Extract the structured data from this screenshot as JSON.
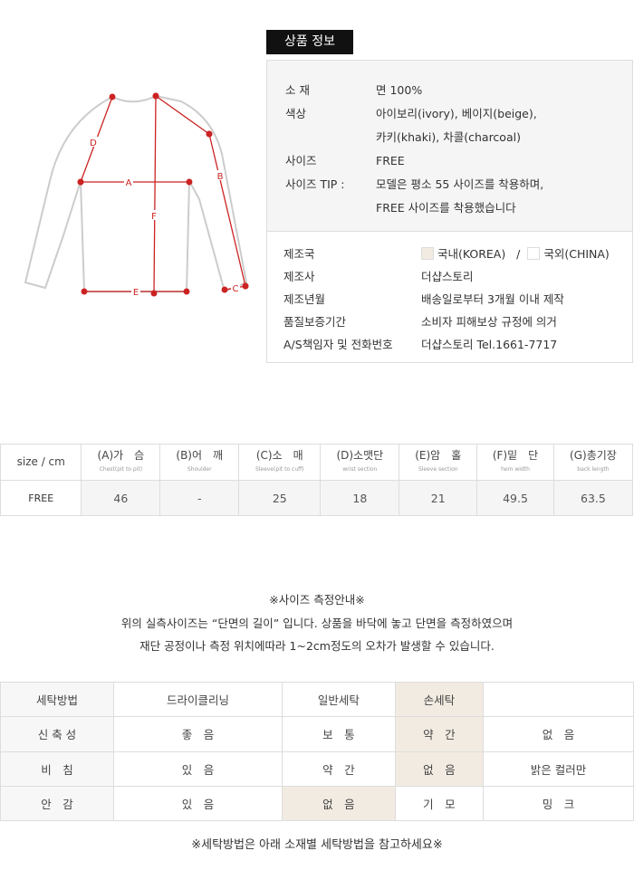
{
  "header": {
    "title": "상품 정보"
  },
  "diagram": {
    "labels": [
      "A",
      "B",
      "C",
      "D",
      "E",
      "F"
    ],
    "accent": "#cc2222"
  },
  "info_top": [
    {
      "k": "소 재",
      "v": [
        "면 100%"
      ]
    },
    {
      "k": "색상",
      "v": [
        "아이보리(ivory), 베이지(beige),",
        "카키(khaki), 차콜(charcoal)"
      ]
    },
    {
      "k": "사이즈",
      "v": [
        "FREE"
      ]
    },
    {
      "k": "사이즈 TIP :",
      "v": [
        "모델은 평소 55 사이즈를 착용하며,",
        "FREE 사이즈를 착용했습니다"
      ]
    }
  ],
  "origin": {
    "label": "제조국",
    "korea": "국내(KOREA)",
    "sep": "/",
    "china": "국외(CHINA)",
    "selected_color": "#f2ebe2"
  },
  "info_bot": [
    {
      "k": "제조사",
      "v": "더샵스토리"
    },
    {
      "k": "제조년월",
      "v": "배송일로부터 3개월 이내 제작"
    },
    {
      "k": "품질보증기간",
      "v": "소비자 피해보상 규정에 의거"
    },
    {
      "k": "A/S책임자 및 전화번호",
      "v": "더샵스토리 Tel.1661-7717"
    }
  ],
  "size_table": {
    "corner": "size / cm",
    "headers": [
      {
        "t": "(A)가　슴",
        "s": "Chest(pit to pit)"
      },
      {
        "t": "(B)어　깨",
        "s": "Shoulder"
      },
      {
        "t": "(C)소　매",
        "s": "Sleeve(pit to cuff)"
      },
      {
        "t": "(D)소맷단",
        "s": "wrist section"
      },
      {
        "t": "(E)암　홀",
        "s": "Sleeve section"
      },
      {
        "t": "(F)밑　단",
        "s": "hem width"
      },
      {
        "t": "(G)총기장",
        "s": "back length"
      }
    ],
    "row": {
      "size": "FREE",
      "values": [
        "46",
        "-",
        "25",
        "18",
        "21",
        "49.5",
        "63.5"
      ]
    }
  },
  "notes": [
    "※사이즈 측정안내※",
    "위의 실측사이즈는 “단면의 길이” 입니다. 상품을 바닥에 놓고 단면을 측정하였으며",
    "재단 공정이나 측정 위치에따라 1~2cm정도의 오차가 발생할 수 있습니다."
  ],
  "wash_table": {
    "highlight_color": "#f2ebe2",
    "rows": [
      {
        "cells": [
          "세탁방법",
          "드라이클리닝",
          "일반세탁",
          "손세탁",
          ""
        ],
        "hl": 3
      },
      {
        "cells": [
          "신 축 성",
          "좋　음",
          "보　통",
          "약　간",
          "없　음"
        ],
        "hl": 3
      },
      {
        "cells": [
          "비　침",
          "있　음",
          "약　간",
          "없　음",
          "밝은 컬러만"
        ],
        "hl": 3
      },
      {
        "cells": [
          "안　감",
          "있　음",
          "없　음",
          "기　모",
          "밍　크"
        ],
        "hl": 2
      }
    ]
  },
  "footer": "※세탁방법은 아래 소재별 세탁방법을 참고하세요※"
}
